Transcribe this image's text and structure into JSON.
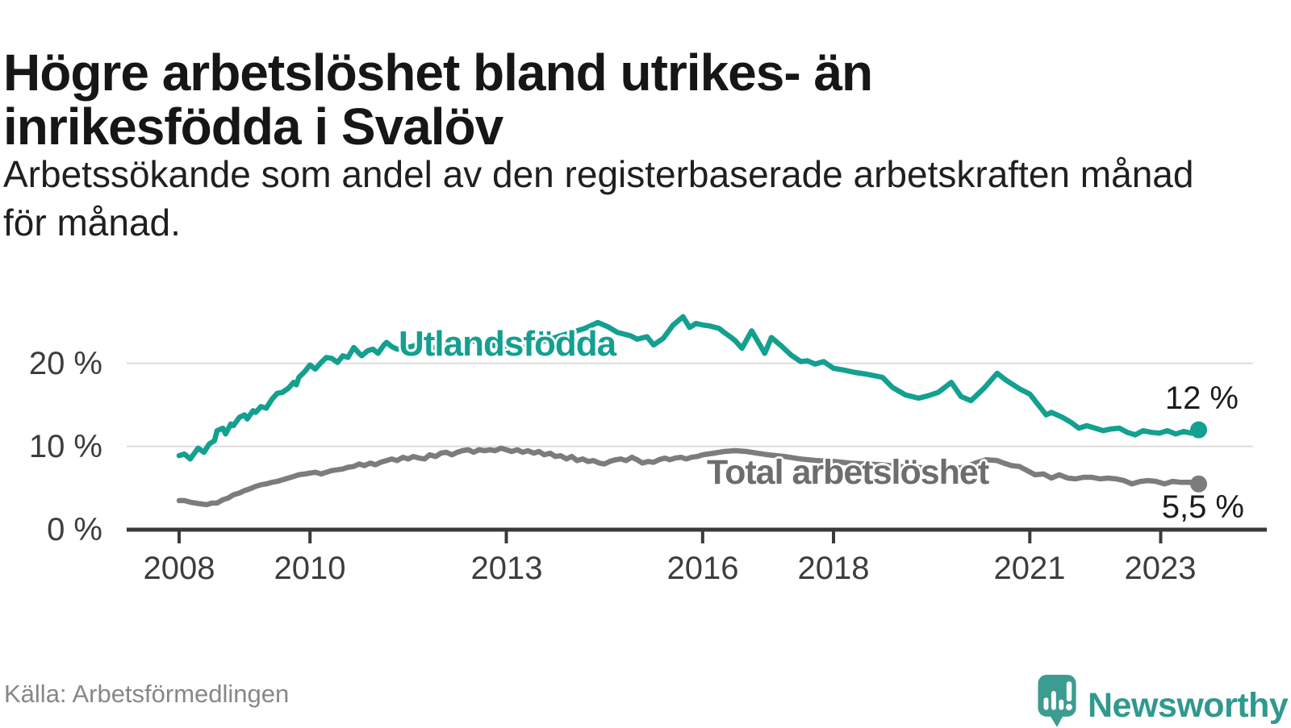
{
  "chart_data": {
    "type": "line",
    "title": "Högre arbetslöshet bland utrikes- än\ninrikesfödda i Svalöv",
    "subtitle": "Arbetssökande som andel av den registerbaserade arbetskraften månad\nför månad.",
    "source": "Källa: Arbetsförmedlingen",
    "grid": "on",
    "x_axis": {
      "min": 2007.2,
      "max": 2024.6,
      "ticks": [
        {
          "value": 2008,
          "label": "2008"
        },
        {
          "value": 2010,
          "label": "2010"
        },
        {
          "value": 2013,
          "label": "2013"
        },
        {
          "value": 2016,
          "label": "2016"
        },
        {
          "value": 2018,
          "label": "2018"
        },
        {
          "value": 2021,
          "label": "2021"
        },
        {
          "value": 2023,
          "label": "2023"
        }
      ]
    },
    "y_axis": {
      "min": 0,
      "max": 27.5,
      "unit": "%",
      "grid_values": [
        10,
        20
      ],
      "ticks": [
        {
          "value": 0,
          "label": "0 %"
        },
        {
          "value": 10,
          "label": "10 %"
        },
        {
          "value": 20,
          "label": "20 %"
        }
      ]
    },
    "series": [
      {
        "name": "Utlandsfödda",
        "color": "#13a090",
        "end_value": 12,
        "end_label": "12 %",
        "points": [
          [
            2008.0,
            8.9
          ],
          [
            2008.08,
            9.1
          ],
          [
            2008.17,
            8.5
          ],
          [
            2008.29,
            9.8
          ],
          [
            2008.38,
            9.3
          ],
          [
            2008.46,
            10.3
          ],
          [
            2008.54,
            10.7
          ],
          [
            2008.58,
            11.9
          ],
          [
            2008.67,
            12.2
          ],
          [
            2008.71,
            11.5
          ],
          [
            2008.79,
            12.7
          ],
          [
            2008.83,
            12.5
          ],
          [
            2008.92,
            13.5
          ],
          [
            2009.0,
            13.8
          ],
          [
            2009.04,
            13.3
          ],
          [
            2009.13,
            14.3
          ],
          [
            2009.17,
            14.1
          ],
          [
            2009.25,
            14.8
          ],
          [
            2009.33,
            14.6
          ],
          [
            2009.42,
            15.7
          ],
          [
            2009.5,
            16.4
          ],
          [
            2009.58,
            16.5
          ],
          [
            2009.67,
            17.0
          ],
          [
            2009.75,
            17.7
          ],
          [
            2009.79,
            17.4
          ],
          [
            2009.83,
            18.3
          ],
          [
            2009.92,
            19.0
          ],
          [
            2010.0,
            19.8
          ],
          [
            2010.08,
            19.3
          ],
          [
            2010.17,
            20.1
          ],
          [
            2010.25,
            20.7
          ],
          [
            2010.33,
            20.6
          ],
          [
            2010.42,
            20.1
          ],
          [
            2010.5,
            20.9
          ],
          [
            2010.58,
            20.7
          ],
          [
            2010.67,
            21.9
          ],
          [
            2010.75,
            21.2
          ],
          [
            2010.79,
            20.9
          ],
          [
            2010.88,
            21.5
          ],
          [
            2010.96,
            21.7
          ],
          [
            2011.04,
            21.2
          ],
          [
            2011.13,
            22.2
          ],
          [
            2011.17,
            22.5
          ],
          [
            2011.25,
            22.0
          ],
          [
            2011.33,
            21.7
          ],
          [
            2011.5,
            21.9
          ],
          [
            2011.67,
            22.3
          ],
          [
            2011.83,
            21.8
          ],
          [
            2012.0,
            22.0
          ],
          [
            2012.17,
            22.5
          ],
          [
            2012.33,
            22.2
          ],
          [
            2012.5,
            22.7
          ],
          [
            2012.67,
            22.4
          ],
          [
            2012.83,
            22.1
          ],
          [
            2013.0,
            21.9
          ],
          [
            2013.17,
            21.6
          ],
          [
            2013.33,
            22.1
          ],
          [
            2013.5,
            22.5
          ],
          [
            2013.67,
            22.9
          ],
          [
            2013.83,
            23.3
          ],
          [
            2014.0,
            23.7
          ],
          [
            2014.2,
            24.2
          ],
          [
            2014.4,
            24.9
          ],
          [
            2014.55,
            24.4
          ],
          [
            2014.7,
            23.7
          ],
          [
            2014.9,
            23.3
          ],
          [
            2015.0,
            22.9
          ],
          [
            2015.15,
            23.2
          ],
          [
            2015.25,
            22.2
          ],
          [
            2015.4,
            23.0
          ],
          [
            2015.55,
            24.6
          ],
          [
            2015.7,
            25.6
          ],
          [
            2015.8,
            24.3
          ],
          [
            2015.9,
            24.8
          ],
          [
            2016.0,
            24.6
          ],
          [
            2016.1,
            24.5
          ],
          [
            2016.25,
            24.2
          ],
          [
            2016.33,
            23.7
          ],
          [
            2016.42,
            23.2
          ],
          [
            2016.5,
            22.7
          ],
          [
            2016.6,
            21.8
          ],
          [
            2016.75,
            23.9
          ],
          [
            2016.95,
            21.2
          ],
          [
            2017.05,
            23.1
          ],
          [
            2017.2,
            22.1
          ],
          [
            2017.35,
            21.0
          ],
          [
            2017.5,
            20.2
          ],
          [
            2017.6,
            20.3
          ],
          [
            2017.72,
            19.9
          ],
          [
            2017.85,
            20.2
          ],
          [
            2018.0,
            19.4
          ],
          [
            2018.15,
            19.2
          ],
          [
            2018.33,
            18.9
          ],
          [
            2018.5,
            18.7
          ],
          [
            2018.75,
            18.3
          ],
          [
            2018.9,
            17.1
          ],
          [
            2019.1,
            16.2
          ],
          [
            2019.3,
            15.8
          ],
          [
            2019.45,
            16.1
          ],
          [
            2019.6,
            16.5
          ],
          [
            2019.8,
            17.7
          ],
          [
            2019.95,
            16.0
          ],
          [
            2020.1,
            15.5
          ],
          [
            2020.3,
            17.0
          ],
          [
            2020.5,
            18.8
          ],
          [
            2020.65,
            17.9
          ],
          [
            2020.85,
            16.9
          ],
          [
            2021.0,
            16.3
          ],
          [
            2021.1,
            15.3
          ],
          [
            2021.25,
            13.8
          ],
          [
            2021.33,
            14.1
          ],
          [
            2021.5,
            13.5
          ],
          [
            2021.63,
            12.9
          ],
          [
            2021.75,
            12.2
          ],
          [
            2021.87,
            12.5
          ],
          [
            2022.0,
            12.2
          ],
          [
            2022.12,
            11.9
          ],
          [
            2022.24,
            12.1
          ],
          [
            2022.37,
            12.2
          ],
          [
            2022.49,
            11.7
          ],
          [
            2022.61,
            11.4
          ],
          [
            2022.73,
            11.9
          ],
          [
            2022.86,
            11.7
          ],
          [
            2022.98,
            11.6
          ],
          [
            2023.1,
            11.9
          ],
          [
            2023.23,
            11.5
          ],
          [
            2023.35,
            11.8
          ],
          [
            2023.47,
            11.6
          ],
          [
            2023.58,
            12.0
          ]
        ]
      },
      {
        "name": "Total arbetslöshet",
        "color": "#7c7c7e",
        "label_color": "#6d6d6f",
        "end_value": 5.5,
        "end_label": "5,5 %",
        "points": [
          [
            2008.0,
            3.5
          ],
          [
            2008.08,
            3.5
          ],
          [
            2008.17,
            3.3
          ],
          [
            2008.25,
            3.2
          ],
          [
            2008.33,
            3.1
          ],
          [
            2008.42,
            3.0
          ],
          [
            2008.5,
            3.2
          ],
          [
            2008.58,
            3.2
          ],
          [
            2008.67,
            3.6
          ],
          [
            2008.75,
            3.8
          ],
          [
            2008.83,
            4.2
          ],
          [
            2008.92,
            4.4
          ],
          [
            2009.0,
            4.7
          ],
          [
            2009.08,
            4.9
          ],
          [
            2009.17,
            5.2
          ],
          [
            2009.25,
            5.4
          ],
          [
            2009.33,
            5.5
          ],
          [
            2009.42,
            5.7
          ],
          [
            2009.5,
            5.8
          ],
          [
            2009.58,
            6.0
          ],
          [
            2009.67,
            6.2
          ],
          [
            2009.75,
            6.4
          ],
          [
            2009.83,
            6.6
          ],
          [
            2009.92,
            6.7
          ],
          [
            2010.0,
            6.8
          ],
          [
            2010.08,
            6.9
          ],
          [
            2010.17,
            6.7
          ],
          [
            2010.25,
            6.9
          ],
          [
            2010.33,
            7.1
          ],
          [
            2010.42,
            7.2
          ],
          [
            2010.5,
            7.3
          ],
          [
            2010.58,
            7.5
          ],
          [
            2010.67,
            7.6
          ],
          [
            2010.75,
            7.9
          ],
          [
            2010.83,
            7.7
          ],
          [
            2010.92,
            8.0
          ],
          [
            2011.0,
            7.8
          ],
          [
            2011.08,
            8.1
          ],
          [
            2011.17,
            8.3
          ],
          [
            2011.25,
            8.5
          ],
          [
            2011.33,
            8.3
          ],
          [
            2011.42,
            8.7
          ],
          [
            2011.5,
            8.5
          ],
          [
            2011.58,
            8.8
          ],
          [
            2011.67,
            8.6
          ],
          [
            2011.75,
            8.5
          ],
          [
            2011.83,
            9.0
          ],
          [
            2011.92,
            8.8
          ],
          [
            2012.0,
            9.2
          ],
          [
            2012.08,
            9.3
          ],
          [
            2012.17,
            9.0
          ],
          [
            2012.25,
            9.3
          ],
          [
            2012.33,
            9.5
          ],
          [
            2012.42,
            9.6
          ],
          [
            2012.5,
            9.3
          ],
          [
            2012.58,
            9.6
          ],
          [
            2012.67,
            9.5
          ],
          [
            2012.75,
            9.6
          ],
          [
            2012.83,
            9.5
          ],
          [
            2012.92,
            9.8
          ],
          [
            2013.0,
            9.6
          ],
          [
            2013.08,
            9.4
          ],
          [
            2013.17,
            9.6
          ],
          [
            2013.25,
            9.3
          ],
          [
            2013.33,
            9.5
          ],
          [
            2013.42,
            9.2
          ],
          [
            2013.5,
            9.4
          ],
          [
            2013.58,
            9.0
          ],
          [
            2013.67,
            9.2
          ],
          [
            2013.75,
            8.8
          ],
          [
            2013.83,
            8.9
          ],
          [
            2013.92,
            8.5
          ],
          [
            2014.0,
            8.8
          ],
          [
            2014.08,
            8.3
          ],
          [
            2014.17,
            8.5
          ],
          [
            2014.25,
            8.2
          ],
          [
            2014.33,
            8.3
          ],
          [
            2014.42,
            8.0
          ],
          [
            2014.5,
            7.9
          ],
          [
            2014.58,
            8.2
          ],
          [
            2014.67,
            8.4
          ],
          [
            2014.75,
            8.5
          ],
          [
            2014.83,
            8.3
          ],
          [
            2014.92,
            8.7
          ],
          [
            2015.0,
            8.4
          ],
          [
            2015.08,
            8.0
          ],
          [
            2015.17,
            8.2
          ],
          [
            2015.25,
            8.1
          ],
          [
            2015.33,
            8.4
          ],
          [
            2015.42,
            8.6
          ],
          [
            2015.5,
            8.4
          ],
          [
            2015.58,
            8.6
          ],
          [
            2015.67,
            8.7
          ],
          [
            2015.75,
            8.5
          ],
          [
            2015.83,
            8.7
          ],
          [
            2015.92,
            8.8
          ],
          [
            2016.0,
            9.0
          ],
          [
            2016.17,
            9.2
          ],
          [
            2016.33,
            9.4
          ],
          [
            2016.5,
            9.5
          ],
          [
            2016.67,
            9.4
          ],
          [
            2016.83,
            9.2
          ],
          [
            2017.0,
            9.0
          ],
          [
            2017.25,
            8.8
          ],
          [
            2017.5,
            8.5
          ],
          [
            2017.75,
            8.3
          ],
          [
            2018.0,
            8.2
          ],
          [
            2018.25,
            8.0
          ],
          [
            2018.5,
            7.9
          ],
          [
            2018.75,
            7.8
          ],
          [
            2019.0,
            7.6
          ],
          [
            2019.25,
            7.5
          ],
          [
            2019.5,
            7.4
          ],
          [
            2019.75,
            7.3
          ],
          [
            2020.0,
            7.5
          ],
          [
            2020.17,
            8.0
          ],
          [
            2020.33,
            8.4
          ],
          [
            2020.5,
            8.3
          ],
          [
            2020.6,
            8.0
          ],
          [
            2020.72,
            7.7
          ],
          [
            2020.84,
            7.6
          ],
          [
            2020.96,
            7.1
          ],
          [
            2021.08,
            6.6
          ],
          [
            2021.21,
            6.7
          ],
          [
            2021.33,
            6.2
          ],
          [
            2021.45,
            6.6
          ],
          [
            2021.58,
            6.2
          ],
          [
            2021.7,
            6.1
          ],
          [
            2021.82,
            6.3
          ],
          [
            2021.95,
            6.3
          ],
          [
            2022.07,
            6.1
          ],
          [
            2022.19,
            6.2
          ],
          [
            2022.32,
            6.1
          ],
          [
            2022.44,
            5.9
          ],
          [
            2022.56,
            5.5
          ],
          [
            2022.69,
            5.8
          ],
          [
            2022.81,
            5.9
          ],
          [
            2022.93,
            5.8
          ],
          [
            2023.06,
            5.5
          ],
          [
            2023.18,
            5.8
          ],
          [
            2023.3,
            5.7
          ],
          [
            2023.45,
            5.7
          ],
          [
            2023.58,
            5.5
          ]
        ]
      }
    ]
  },
  "branding": {
    "logo_text": "Newsworthy",
    "logo_color": "#3c9c92",
    "logo_text_color": "#2f998e"
  },
  "colors": {
    "accent_teal": "#13a090",
    "line_gray": "#7c7c7e",
    "axis": "#3a3a3a",
    "grid": "#dddddd"
  }
}
